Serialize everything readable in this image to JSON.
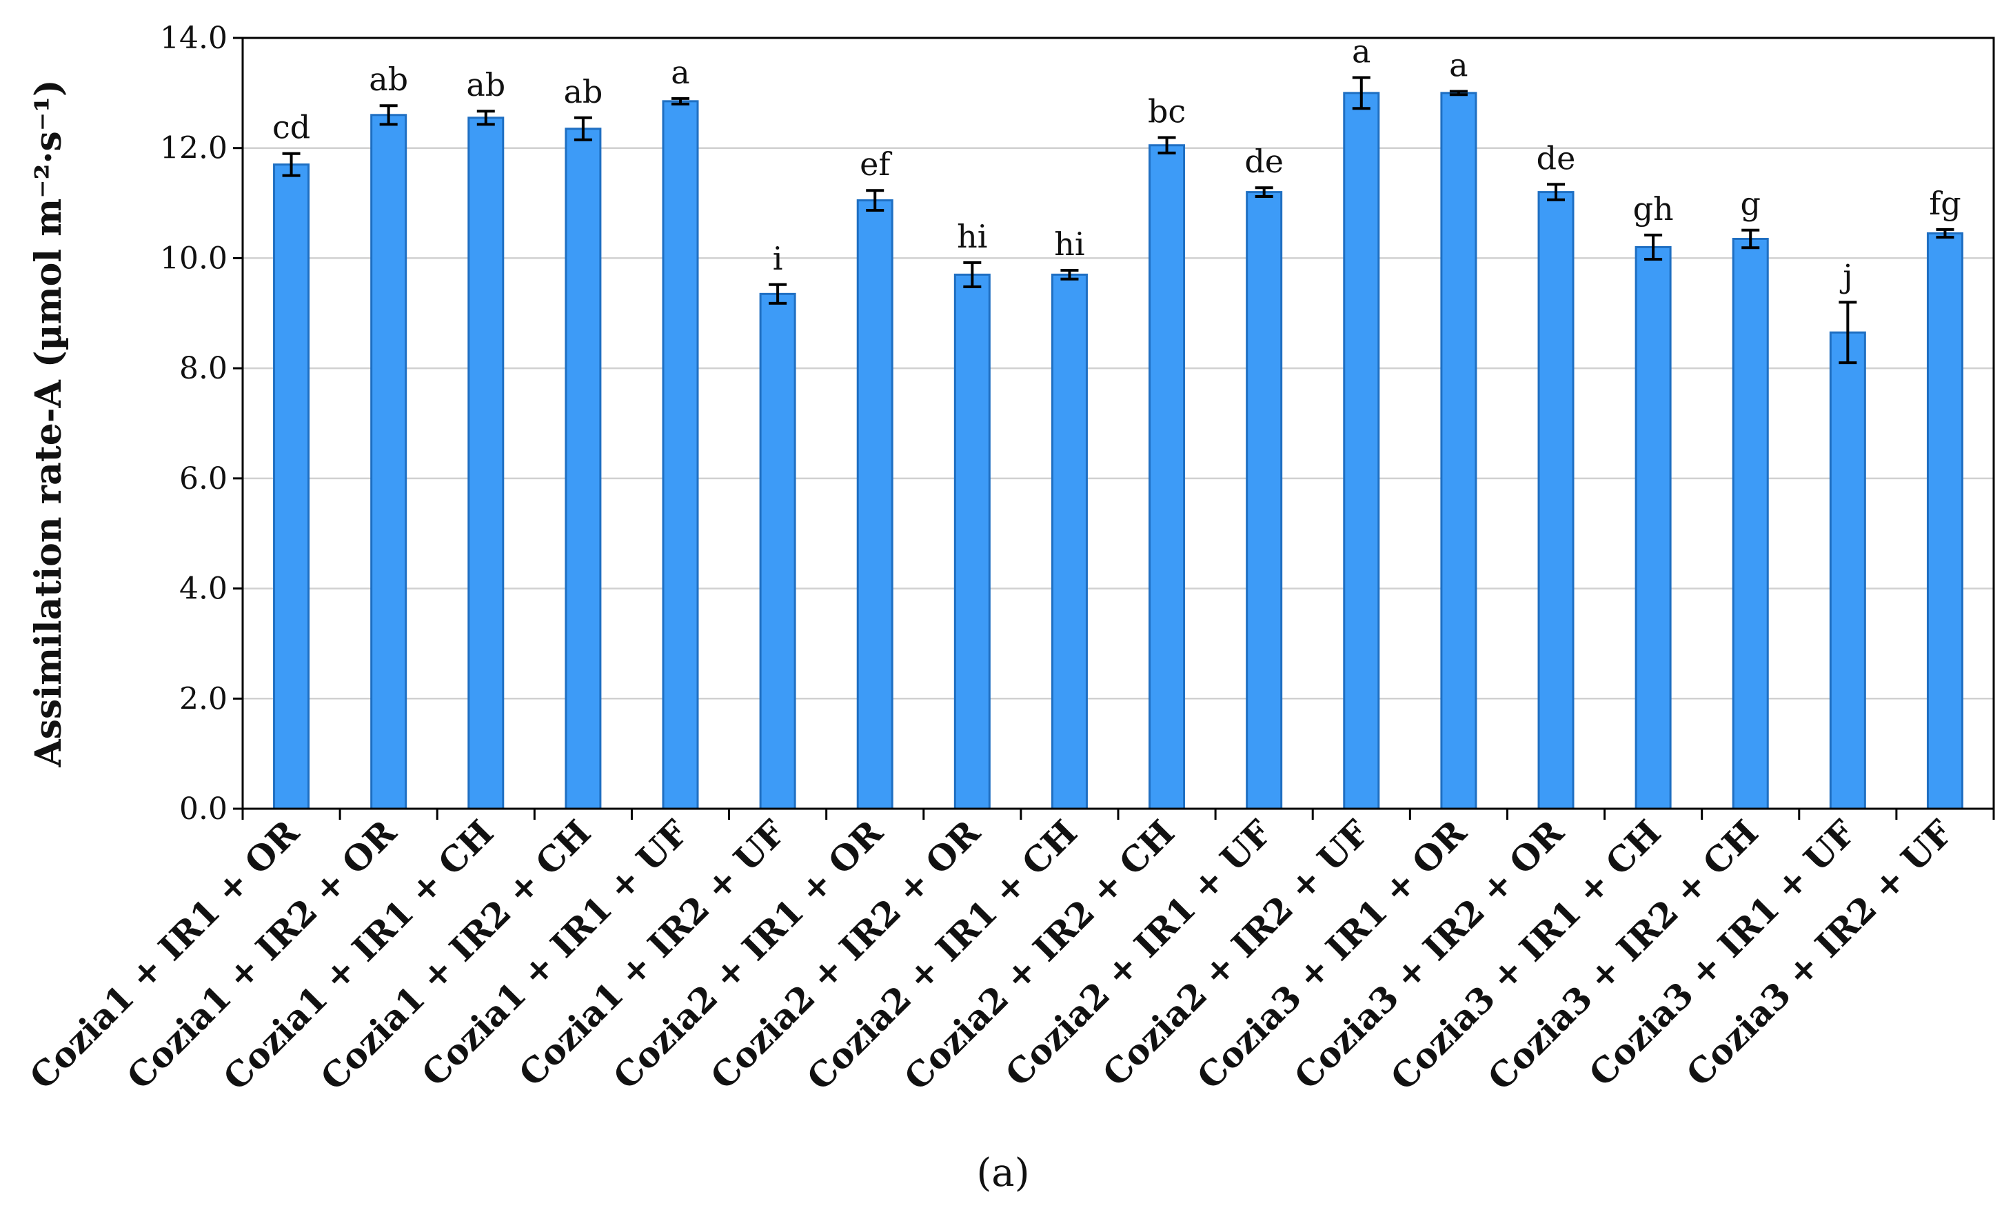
{
  "chart_data": {
    "type": "bar",
    "ylabel": "Assimilation rate-A  (µmol m⁻²·s⁻¹)",
    "ylim": [
      0,
      14
    ],
    "yticks": [
      "0.0",
      "2.0",
      "4.0",
      "6.0",
      "8.0",
      "10.0",
      "12.0",
      "14.0"
    ],
    "grid": true,
    "categories": [
      "Cozia1 + IR1 + OR",
      "Cozia1 + IR2 + OR",
      "Cozia1 + IR1 + CH",
      "Cozia1 + IR2 + CH",
      "Cozia1 + IR1 + UF",
      "Cozia1 + IR2 + UF",
      "Cozia2 + IR1 + OR",
      "Cozia2 + IR2 + OR",
      "Cozia2 + IR1 + CH",
      "Cozia2 + IR2 + CH",
      "Cozia2 + IR1 + UF",
      "Cozia2 + IR2 + UF",
      "Cozia3 + IR1 + OR",
      "Cozia3 + IR2 + OR",
      "Cozia3 + IR1 + CH",
      "Cozia3 + IR2 + CH",
      "Cozia3 + IR1 + UF",
      "Cozia3 + IR2 + UF"
    ],
    "values": [
      11.7,
      12.6,
      12.55,
      12.35,
      12.85,
      9.35,
      11.05,
      9.7,
      9.7,
      12.05,
      11.2,
      13.0,
      13.0,
      11.2,
      10.2,
      10.35,
      8.65,
      10.45
    ],
    "errors": [
      0.2,
      0.17,
      0.12,
      0.2,
      0.05,
      0.17,
      0.18,
      0.22,
      0.08,
      0.14,
      0.08,
      0.28,
      0.03,
      0.14,
      0.22,
      0.16,
      0.55,
      0.07
    ],
    "significance": [
      "cd",
      "ab",
      "ab",
      "ab",
      "a",
      "i",
      "ef",
      "hi",
      "hi",
      "bc",
      "de",
      "a",
      "a",
      "de",
      "gh",
      "g",
      "j",
      "fg"
    ],
    "colors": {
      "bar_fill": "#3d9bf7",
      "bar_stroke": "#1f6fc2",
      "error_bar": "#000000",
      "grid": "#d0d0d0"
    }
  },
  "caption": "(a)"
}
